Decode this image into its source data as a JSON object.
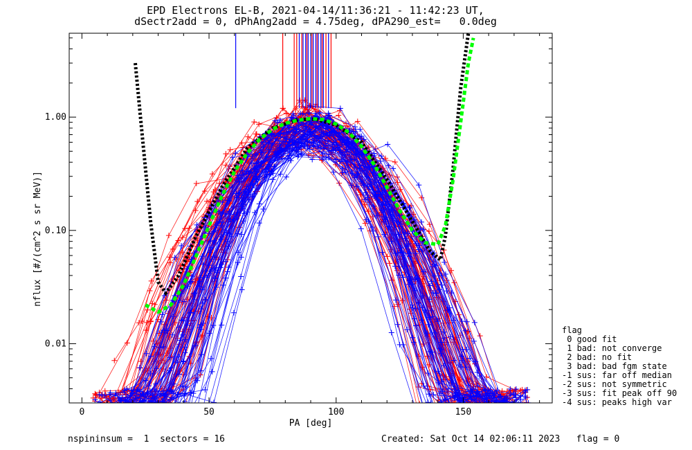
{
  "title_line1": "EPD Electrons EL-B, 2021-04-14/11:36:21 - 11:42:23 UT,",
  "title_line2": "dSectr2add = 0, dPhAng2add = 4.75deg, dPA290_est=   0.0deg",
  "footer_left": "nspininsum =  1  sectors = 16",
  "footer_right": "Created: Sat Oct 14 02:06:11 2023   flag = 0",
  "legend": {
    "title": "flag",
    "items": [
      " 0 good fit",
      " 1 bad: not converge",
      " 2 bad: no fit",
      " 3 bad: bad fgm state",
      "-1 sus: far off median",
      "-2 sus: not symmetric",
      "-3 sus: fit peak off 90",
      "-4 sus: peaks high var"
    ]
  },
  "colors": {
    "red": "#ff0000",
    "blue": "#0000ff",
    "black": "#000000",
    "green": "#00ff00"
  },
  "chart_data": {
    "type": "line",
    "title": "EPD Electrons EL-B, 2021-04-14/11:36:21 - 11:42:23 UT,",
    "subtitle": "dSectr2add = 0, dPhAng2add = 4.75deg, dPA290_est=   0.0deg",
    "xlabel": "PA [deg]",
    "ylabel": "nflux [#/(cm^2 s sr MeV)]",
    "xlim": [
      -5,
      185
    ],
    "ylim": [
      0.003,
      5.5
    ],
    "yscale": "log",
    "xticks": [
      0,
      50,
      100,
      150
    ],
    "xticklabels": [
      "0",
      "50",
      "100",
      "150"
    ],
    "yticks": [
      0.01,
      0.1,
      1.0
    ],
    "yticklabels": [
      "0.01",
      "0.10",
      "1.00"
    ],
    "series": [
      {
        "style": "dotted",
        "color": "black",
        "x": [
          21,
          24,
          27,
          30,
          33,
          38,
          45,
          55,
          65,
          75,
          85,
          92,
          100,
          110,
          120,
          130,
          137,
          141,
          143,
          146,
          149,
          152
        ],
        "y": [
          3.0,
          0.6,
          0.12,
          0.035,
          0.028,
          0.04,
          0.09,
          0.24,
          0.53,
          0.8,
          0.95,
          0.96,
          0.85,
          0.6,
          0.28,
          0.12,
          0.065,
          0.055,
          0.09,
          0.35,
          1.8,
          5.5
        ]
      },
      {
        "style": "dashed",
        "color": "green",
        "x": [
          25,
          30,
          35,
          40,
          45,
          50,
          55,
          60,
          65,
          70,
          75,
          80,
          85,
          90,
          95,
          100,
          105,
          110,
          115,
          120,
          125,
          130,
          135,
          140,
          143,
          146,
          149,
          152,
          154
        ],
        "y": [
          0.022,
          0.019,
          0.022,
          0.033,
          0.06,
          0.11,
          0.2,
          0.33,
          0.48,
          0.64,
          0.78,
          0.88,
          0.94,
          0.97,
          0.95,
          0.87,
          0.73,
          0.55,
          0.38,
          0.24,
          0.15,
          0.1,
          0.078,
          0.075,
          0.11,
          0.28,
          0.9,
          3.0,
          5.0
        ]
      }
    ],
    "scatter_families": [
      {
        "name": "",
        "color": "red",
        "count": 70,
        "center": 88,
        "width": 18,
        "peak": 0.9
      },
      {
        "name": "",
        "color": "blue",
        "count": 70,
        "center": 90,
        "width": 17,
        "peak": 0.85
      }
    ],
    "vertical_markers": [
      {
        "x": 60.5,
        "color": "blue",
        "ymin": 1.2
      },
      {
        "x": 79,
        "color": "red",
        "ymin": 1.2
      },
      {
        "x": 83.5,
        "color": "red",
        "ymin": 1.2
      },
      {
        "x": 84.5,
        "color": "red",
        "ymin": 1.2
      },
      {
        "x": 85.5,
        "color": "blue",
        "ymin": 1.2
      },
      {
        "x": 86.5,
        "color": "red",
        "ymin": 1.2
      },
      {
        "x": 87,
        "color": "blue",
        "ymin": 1.2
      },
      {
        "x": 88,
        "color": "blue",
        "ymin": 1.2
      },
      {
        "x": 88.5,
        "color": "red",
        "ymin": 1.2
      },
      {
        "x": 89,
        "color": "blue",
        "ymin": 1.2
      },
      {
        "x": 90,
        "color": "blue",
        "ymin": 1.2
      },
      {
        "x": 90.5,
        "color": "red",
        "ymin": 1.2
      },
      {
        "x": 91,
        "color": "blue",
        "ymin": 1.2
      },
      {
        "x": 92,
        "color": "blue",
        "ymin": 1.2
      },
      {
        "x": 92.5,
        "color": "red",
        "ymin": 1.2
      },
      {
        "x": 93,
        "color": "blue",
        "ymin": 1.2
      },
      {
        "x": 94,
        "color": "blue",
        "ymin": 1.2
      },
      {
        "x": 94.5,
        "color": "red",
        "ymin": 1.2
      },
      {
        "x": 95,
        "color": "blue",
        "ymin": 1.2
      },
      {
        "x": 96,
        "color": "red",
        "ymin": 1.2
      },
      {
        "x": 97,
        "color": "blue",
        "ymin": 1.2
      },
      {
        "x": 98,
        "color": "red",
        "ymin": 1.2
      }
    ]
  }
}
